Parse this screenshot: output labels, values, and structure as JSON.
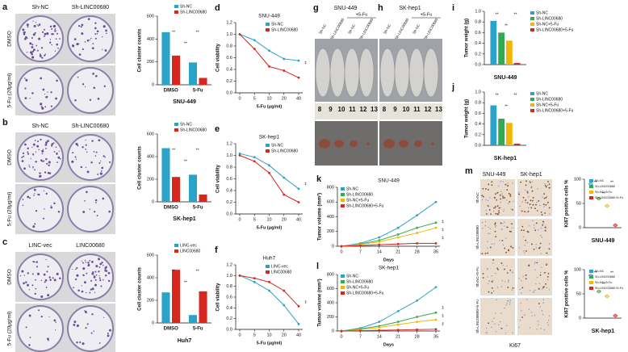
{
  "panel_labels": [
    "a",
    "b",
    "c",
    "d",
    "e",
    "f",
    "g",
    "h",
    "i",
    "j",
    "k",
    "l",
    "m"
  ],
  "photos": {
    "plates": [
      {
        "columns": [
          "Sh-NC",
          "Sh-LINC00680"
        ],
        "rows": [
          "DMSO",
          "5-Fu (20μg/ml)"
        ]
      },
      {
        "columns": [
          "Sh-NC",
          "Sh-LINC00680"
        ],
        "rows": [
          "DMSO",
          "5-Fu (20μg/ml)"
        ]
      },
      {
        "columns": [
          "LINC-vec",
          "LINC00680"
        ],
        "rows": [
          "DMSO",
          "5-Fu (20μg/ml)"
        ]
      }
    ],
    "mice": [
      {
        "title": "SNU-449",
        "treatment": "+5-Fu",
        "labels": [
          "Sh-NC",
          "Sh-LINC00680",
          "Sh-NC",
          "Sh-LINC00680"
        ]
      },
      {
        "title": "SK-hep1",
        "treatment": "+5-Fu",
        "labels": [
          "Sh-NC",
          "Sh-LINC00680",
          "Sh-NC",
          "Sh-LINC00680"
        ]
      }
    ],
    "ruler": [
      "8",
      "9",
      "10",
      "11",
      "12",
      "13"
    ],
    "ihc": {
      "columns": [
        "SNU-449",
        "SK-hep1"
      ],
      "rows": [
        "Sh-NC",
        "Sh-LINC00680",
        "Sh-NC+5-Fu",
        "Sh-LINC00680+5-Fu"
      ],
      "stain": "Ki67"
    }
  },
  "chart_data": [
    {
      "type": "bar",
      "title": "SNU-449",
      "ylabel": "Cell cluster counts",
      "categories": [
        "DMSO",
        "5-Fu"
      ],
      "series": [
        {
          "name": "Sh-NC",
          "color": "#2ba3c9",
          "values": [
            460,
            195
          ]
        },
        {
          "name": "Sh-LINC00680",
          "color": "#d7261e",
          "values": [
            255,
            60
          ]
        }
      ],
      "ylim": [
        0,
        600
      ],
      "yticks": [
        0,
        200,
        400,
        600
      ],
      "legend": "upper right",
      "annotations": [
        "**",
        "**",
        "**"
      ]
    },
    {
      "type": "bar",
      "title": "SK-hep1",
      "ylabel": "Cell cluster counts",
      "categories": [
        "DMSO",
        "5-Fu"
      ],
      "series": [
        {
          "name": "Sh-NC",
          "color": "#2ba3c9",
          "values": [
            475,
            240
          ]
        },
        {
          "name": "Sh-LINC00680",
          "color": "#d7261e",
          "values": [
            220,
            65
          ]
        }
      ],
      "ylim": [
        0,
        600
      ],
      "yticks": [
        0,
        200,
        400,
        600
      ],
      "legend": "upper right",
      "annotations": [
        "**",
        "**",
        "**"
      ]
    },
    {
      "type": "bar",
      "title": "Huh7",
      "ylabel": "Cell cluster counts",
      "categories": [
        "DMSO",
        "5-Fu"
      ],
      "series": [
        {
          "name": "LINC-vec",
          "color": "#2ba3c9",
          "values": [
            270,
            70
          ]
        },
        {
          "name": "LINC00680",
          "color": "#d7261e",
          "values": [
            470,
            280
          ]
        }
      ],
      "ylim": [
        0,
        600
      ],
      "yticks": [
        0,
        200,
        400,
        600
      ],
      "legend": "upper right",
      "annotations": [
        "**",
        "**",
        "**"
      ]
    },
    {
      "type": "line",
      "title": "SNU-449",
      "xlabel": "5-Fu (μg/ml)",
      "ylabel": "Cell viability",
      "categories": [
        "0",
        "5",
        "10",
        "20",
        "40"
      ],
      "series": [
        {
          "name": "Sh-NC",
          "color": "#2ba3c9",
          "values": [
            1.0,
            0.9,
            0.72,
            0.58,
            0.55
          ]
        },
        {
          "name": "Sh-LINC00680",
          "color": "#d7261e",
          "values": [
            1.0,
            0.75,
            0.45,
            0.38,
            0.26
          ]
        }
      ],
      "ylim": [
        0,
        1.2
      ],
      "yticks": [
        {
          "value": 0,
          "label": "0.0"
        },
        0.2,
        0.4,
        0.6,
        0.8,
        {
          "value": 1,
          "label": "1.0"
        },
        1.2
      ],
      "legend": "upper right",
      "annotations": [
        "**"
      ]
    },
    {
      "type": "line",
      "title": "SK-hep1",
      "xlabel": "5-Fu (μg/ml)",
      "ylabel": "Cell viability",
      "categories": [
        "0",
        "5",
        "10",
        "20",
        "40"
      ],
      "series": [
        {
          "name": "Sh-NC",
          "color": "#2ba3c9",
          "values": [
            1.03,
            0.97,
            0.83,
            0.62,
            0.43
          ]
        },
        {
          "name": "Sh-LINC00680",
          "color": "#d7261e",
          "values": [
            1.0,
            0.9,
            0.7,
            0.33,
            0.2
          ]
        }
      ],
      "ylim": [
        0,
        1.2
      ],
      "yticks": [
        {
          "value": 0,
          "label": "0.0"
        },
        0.2,
        0.4,
        0.6,
        0.8,
        {
          "value": 1,
          "label": "1.0"
        },
        1.2
      ],
      "legend": "upper right",
      "annotations": [
        "**"
      ]
    },
    {
      "type": "line",
      "title": "Huh7",
      "xlabel": "5-Fu (μg/ml)",
      "ylabel": "Cell viability",
      "categories": [
        "0",
        "5",
        "10",
        "20",
        "40"
      ],
      "series": [
        {
          "name": "LINC-vec",
          "color": "#2ba3c9",
          "values": [
            1.0,
            0.88,
            0.72,
            0.45,
            0.1
          ]
        },
        {
          "name": "LINC00680",
          "color": "#d7261e",
          "values": [
            1.0,
            0.95,
            0.88,
            0.72,
            0.43
          ]
        }
      ],
      "ylim": [
        0,
        1.2
      ],
      "yticks": [
        {
          "value": 0,
          "label": "0.0"
        },
        0.2,
        0.4,
        0.6,
        0.8,
        {
          "value": 1,
          "label": "1.0"
        },
        1.2
      ],
      "legend": "upper right",
      "annotations": [
        "**"
      ]
    },
    {
      "type": "bar",
      "title": "SNU-449",
      "ylabel": "Tumor weight (g)",
      "categories": [
        null
      ],
      "series": [
        {
          "name": "Sh-NC",
          "color": "#2ba3c9",
          "values": [
            0.82
          ]
        },
        {
          "name": "Sh-LINC00680",
          "color": "#35a853",
          "values": [
            0.6
          ]
        },
        {
          "name": "Sh-NC+5-Fu",
          "color": "#f2b705",
          "values": [
            0.45
          ]
        },
        {
          "name": "Sh-LINC00680+5-Fu",
          "color": "#d7261e",
          "values": [
            0.03
          ]
        }
      ],
      "ylim": [
        0,
        1
      ],
      "yticks": [
        {
          "value": 0,
          "label": "0.0"
        },
        0.2,
        0.4,
        0.6,
        0.8,
        {
          "value": 1,
          "label": "1.0"
        }
      ],
      "legend": "right",
      "annotations": [
        "**",
        "**",
        "**"
      ]
    },
    {
      "type": "bar",
      "title": "SK-hep1",
      "ylabel": "Tumor weight (g)",
      "categories": [
        null
      ],
      "series": [
        {
          "name": "Sh-NC",
          "color": "#2ba3c9",
          "values": [
            0.75
          ]
        },
        {
          "name": "Sh-LINC00680",
          "color": "#35a853",
          "values": [
            0.5
          ]
        },
        {
          "name": "Sh-NC+5-Fu",
          "color": "#f2b705",
          "values": [
            0.42
          ]
        },
        {
          "name": "Sh-LINC00680+5-Fu",
          "color": "#d7261e",
          "values": [
            0.03
          ]
        }
      ],
      "ylim": [
        0,
        1
      ],
      "yticks": [
        {
          "value": 0,
          "label": "0.0"
        },
        0.2,
        0.4,
        0.6,
        0.8,
        {
          "value": 1,
          "label": "1.0"
        }
      ],
      "legend": "right",
      "annotations": [
        "**",
        "**",
        "**"
      ]
    },
    {
      "type": "line",
      "title": "SNU-449",
      "xlabel": "Days",
      "ylabel": "Tumor volume (mm³)",
      "categories": [
        "0",
        "7",
        "14",
        "21",
        "28",
        "35"
      ],
      "series": [
        {
          "name": "Sh-NC",
          "color": "#2ba3c9",
          "values": [
            0,
            40,
            120,
            250,
            420,
            600
          ]
        },
        {
          "name": "Sh-LINC00680",
          "color": "#35a853",
          "values": [
            0,
            30,
            80,
            160,
            250,
            320
          ]
        },
        {
          "name": "Sh-NC+5-Fu",
          "color": "#f2b705",
          "values": [
            0,
            25,
            60,
            120,
            180,
            250
          ]
        },
        {
          "name": "Sh-LINC00680+5-Fu",
          "color": "#d7261e",
          "values": [
            0,
            10,
            20,
            30,
            40,
            40
          ]
        }
      ],
      "ylim": [
        0,
        800
      ],
      "yticks": [
        0,
        200,
        400,
        600,
        800
      ],
      "legend": "upper left",
      "annotations": [
        "**",
        "**",
        "**"
      ]
    },
    {
      "type": "line",
      "title": "SK-hep1",
      "xlabel": "Days",
      "ylabel": "Tumor volume (mm³)",
      "categories": [
        "0",
        "7",
        "14",
        "21",
        "28",
        "35"
      ],
      "series": [
        {
          "name": "Sh-NC",
          "color": "#2ba3c9",
          "values": [
            0,
            40,
            130,
            280,
            430,
            620
          ]
        },
        {
          "name": "Sh-LINC00680",
          "color": "#35a853",
          "values": [
            0,
            30,
            70,
            130,
            200,
            260
          ]
        },
        {
          "name": "Sh-NC+5-Fu",
          "color": "#f2b705",
          "values": [
            0,
            20,
            50,
            90,
            130,
            160
          ]
        },
        {
          "name": "Sh-LINC00680+5-Fu",
          "color": "#d7261e",
          "values": [
            0,
            5,
            10,
            15,
            20,
            25
          ]
        }
      ],
      "ylim": [
        0,
        800
      ],
      "yticks": [
        0,
        200,
        400,
        600,
        800
      ],
      "legend": "upper left",
      "annotations": [
        "**",
        "**",
        "**"
      ]
    },
    {
      "type": "dot",
      "title": "SNU-449",
      "ylabel": "Ki67 positive cells %",
      "categories": [
        null
      ],
      "series": [
        {
          "name": "Sh-NC",
          "color": "#2ba3c9",
          "values": [
            90
          ]
        },
        {
          "name": "Sh-LINC00680",
          "color": "#35a853",
          "values": [
            60
          ]
        },
        {
          "name": "Sh-NC+5-Fu",
          "color": "#f2b705",
          "values": [
            45
          ]
        },
        {
          "name": "Sh-LINC00680+5-Fu",
          "color": "#d7261e",
          "values": [
            5
          ]
        }
      ],
      "ylim": [
        0,
        100
      ],
      "yticks": [
        0,
        50,
        100
      ],
      "legend": "upper right",
      "annotations": [
        "**",
        "**",
        "**"
      ]
    },
    {
      "type": "dot",
      "title": "SK-hep1",
      "ylabel": "Ki67 positive cells %",
      "categories": [
        null
      ],
      "series": [
        {
          "name": "Sh-NC",
          "color": "#2ba3c9",
          "values": [
            88
          ]
        },
        {
          "name": "Sh-LINC00680",
          "color": "#35a853",
          "values": [
            55
          ]
        },
        {
          "name": "Sh-NC+5-Fu",
          "color": "#f2b705",
          "values": [
            45
          ]
        },
        {
          "name": "Sh-LINC00680+5-Fu",
          "color": "#d7261e",
          "values": [
            5
          ]
        }
      ],
      "ylim": [
        0,
        100
      ],
      "yticks": [
        0,
        50,
        100
      ],
      "legend": "upper right",
      "annotations": [
        "**",
        "**",
        "**"
      ]
    }
  ]
}
